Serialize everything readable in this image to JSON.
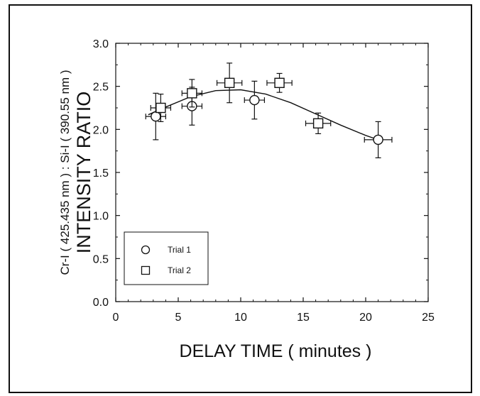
{
  "chart_data": {
    "type": "scatter",
    "xlabel": "DELAY TIME ( minutes )",
    "ylabel": "INTENSITY RATIO",
    "ylabel_sub": "Cr-I ( 425.435 nm ) : Si-I ( 390.55 nm )",
    "xlim": [
      0,
      25
    ],
    "ylim": [
      0.0,
      3.0
    ],
    "x_ticks": [
      "0",
      "5",
      "10",
      "15",
      "20",
      "25"
    ],
    "y_ticks": [
      "0.0",
      "0.5",
      "1.0",
      "1.5",
      "2.0",
      "2.5",
      "3.0"
    ],
    "grid": false,
    "legend_position": "bottom-left",
    "series": [
      {
        "name": "Trial 1",
        "marker": "circle",
        "points": [
          {
            "x": 3.2,
            "y": 2.15,
            "xerr": 0.8,
            "yerr": 0.27
          },
          {
            "x": 6.1,
            "y": 2.27,
            "xerr": 0.8,
            "yerr": 0.22
          },
          {
            "x": 11.1,
            "y": 2.34,
            "xerr": 0.8,
            "yerr": 0.22
          },
          {
            "x": 21.0,
            "y": 1.88,
            "xerr": 1.1,
            "yerr": 0.21
          }
        ]
      },
      {
        "name": "Trial 2",
        "marker": "square",
        "points": [
          {
            "x": 3.6,
            "y": 2.25,
            "xerr": 0.8,
            "yerr": 0.16
          },
          {
            "x": 6.1,
            "y": 2.42,
            "xerr": 0.8,
            "yerr": 0.16
          },
          {
            "x": 9.1,
            "y": 2.54,
            "xerr": 1.0,
            "yerr": 0.23
          },
          {
            "x": 13.1,
            "y": 2.54,
            "xerr": 1.0,
            "yerr": 0.11
          },
          {
            "x": 16.2,
            "y": 2.07,
            "xerr": 1.0,
            "yerr": 0.12
          }
        ]
      }
    ],
    "fit_curve": [
      {
        "x": 2.6,
        "y": 2.17
      },
      {
        "x": 4.0,
        "y": 2.26
      },
      {
        "x": 6.0,
        "y": 2.38
      },
      {
        "x": 8.0,
        "y": 2.45
      },
      {
        "x": 10.0,
        "y": 2.46
      },
      {
        "x": 12.0,
        "y": 2.41
      },
      {
        "x": 14.0,
        "y": 2.31
      },
      {
        "x": 16.0,
        "y": 2.18
      },
      {
        "x": 18.0,
        "y": 2.05
      },
      {
        "x": 20.0,
        "y": 1.93
      },
      {
        "x": 21.0,
        "y": 1.88
      }
    ]
  }
}
